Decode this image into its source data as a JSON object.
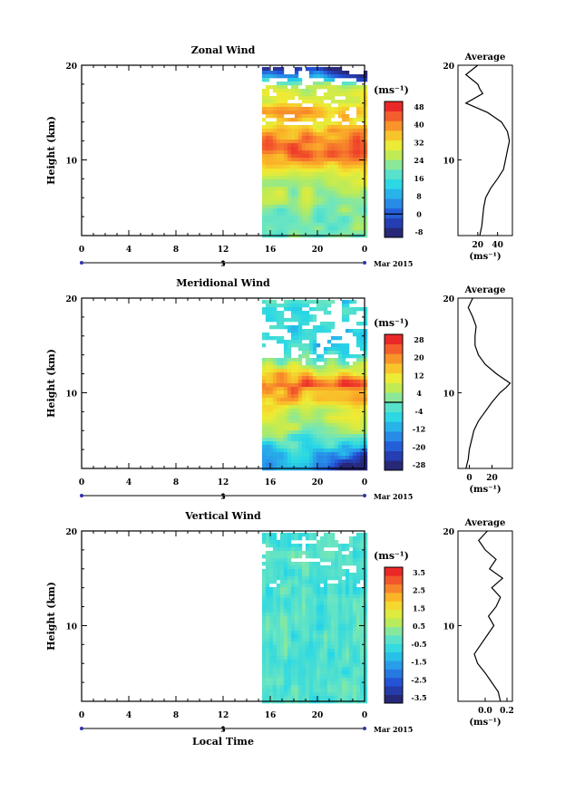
{
  "figure": {
    "xlabel": "Local Time",
    "date_label": "Mar 2015",
    "xticks": [
      "0",
      "4",
      "8",
      "12",
      "16",
      "20",
      "0"
    ],
    "day_marker": "5",
    "ylabel": "Height (km)",
    "yticks": [
      "20",
      "10"
    ],
    "avg_title": "Average",
    "unit": "(ms⁻¹)"
  },
  "chart_data": [
    {
      "type": "heatmap",
      "title": "Zonal Wind",
      "xlabel": "Local Time",
      "ylabel": "Height (km)",
      "xlim": [
        0,
        24
      ],
      "ylim": [
        2,
        20
      ],
      "data_start_hour": 15.3,
      "colorbar": {
        "unit": "(ms⁻¹)",
        "ticks": [
          "48",
          "40",
          "32",
          "24",
          "16",
          "8",
          "0",
          "-8"
        ],
        "levels": 14
      },
      "profile": {
        "title": "Average",
        "xlabel": "(ms⁻¹)",
        "xticks": [
          "20",
          "40"
        ],
        "xlim": [
          0,
          55
        ],
        "heights": [
          2,
          3,
          4,
          5,
          6,
          7,
          8,
          9,
          10,
          11,
          12,
          13,
          14,
          15,
          16,
          17,
          17.5,
          18,
          19,
          20
        ],
        "values": [
          22,
          24,
          25,
          26,
          28,
          33,
          40,
          46,
          48,
          50,
          52,
          50,
          44,
          30,
          8,
          25,
          22,
          20,
          8,
          20
        ]
      }
    },
    {
      "type": "heatmap",
      "title": "Meridional Wind",
      "xlabel": "Local Time",
      "ylabel": "Height (km)",
      "xlim": [
        0,
        24
      ],
      "ylim": [
        2,
        20
      ],
      "data_start_hour": 15.3,
      "colorbar": {
        "unit": "(ms⁻¹)",
        "ticks": [
          "28",
          "20",
          "12",
          "4",
          "-4",
          "-12",
          "-20",
          "-28"
        ],
        "levels": 14
      },
      "profile": {
        "title": "Average",
        "xlabel": "(ms⁻¹)",
        "xticks": [
          "0",
          "20"
        ],
        "xlim": [
          -10,
          38
        ],
        "heights": [
          2,
          3,
          4,
          5,
          6,
          7,
          8,
          9,
          10,
          10.5,
          11,
          12,
          13,
          14,
          15,
          16,
          17,
          18,
          19,
          20
        ],
        "values": [
          -3,
          -1,
          0,
          2,
          4,
          8,
          14,
          20,
          27,
          32,
          36,
          24,
          14,
          8,
          5,
          5,
          6,
          3,
          -1,
          3
        ]
      }
    },
    {
      "type": "heatmap",
      "title": "Vertical Wind",
      "xlabel": "Local Time",
      "ylabel": "Height (km)",
      "xlim": [
        0,
        24
      ],
      "ylim": [
        2,
        20
      ],
      "data_start_hour": 15.3,
      "colorbar": {
        "unit": "(ms⁻¹)",
        "ticks": [
          "3.5",
          "2.5",
          "1.5",
          "0.5",
          "-0.5",
          "-1.5",
          "-2.5",
          "-3.5"
        ],
        "levels": 16
      },
      "profile": {
        "title": "Average",
        "xlabel": "(ms⁻¹)",
        "xticks": [
          "0.0",
          "0.2"
        ],
        "xlim": [
          -0.25,
          0.25
        ],
        "heights": [
          2,
          3,
          4,
          5,
          6,
          7,
          8,
          9,
          10,
          11,
          12,
          13,
          14,
          15,
          16,
          17,
          18,
          19,
          20
        ],
        "values": [
          0.14,
          0.12,
          0.06,
          0.0,
          -0.07,
          -0.1,
          -0.04,
          0.02,
          0.08,
          0.03,
          0.1,
          0.14,
          0.06,
          0.16,
          0.04,
          0.1,
          0.0,
          -0.06,
          0.02
        ]
      }
    }
  ]
}
